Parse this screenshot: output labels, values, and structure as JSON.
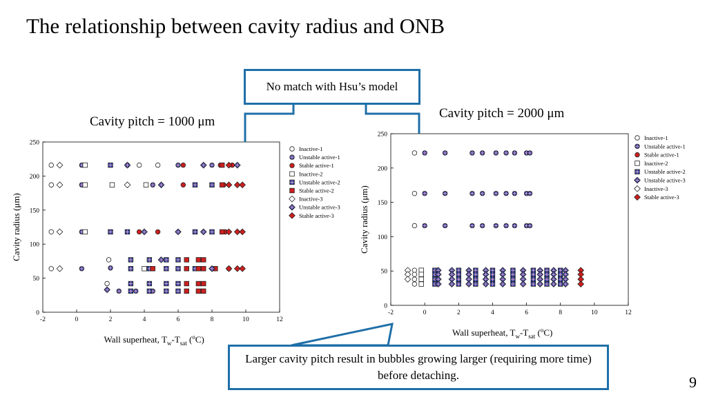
{
  "slide": {
    "title": "The relationship between cavity radius and ONB",
    "page_number": "9",
    "callout_top": "No match with Hsu’s model",
    "callout_bottom": "Larger cavity pitch result in bubbles growing larger (requiring more time) before detaching.",
    "pitch_left": "Cavity pitch = 1000 μm",
    "pitch_right": "Cavity pitch = 2000 μm",
    "accent_color": "#1f6fa8"
  },
  "chart_data": [
    {
      "type": "scatter",
      "title": "",
      "xlabel": "Wall superheat, T",
      "xlabel_sub1": "w",
      "xlabel_mid": "-T",
      "xlabel_sub2": "sat",
      "xlabel_unit_open": " (",
      "xlabel_unit_sup": "o",
      "xlabel_unit_close": "C)",
      "ylabel": "Cavity radius (μm)",
      "xlim": [
        -2,
        12
      ],
      "ylim": [
        0,
        250
      ],
      "xticks": [
        -2,
        0,
        2,
        4,
        6,
        8,
        10,
        12
      ],
      "yticks": [
        0,
        50,
        100,
        150,
        200,
        250
      ],
      "legend_position": "right",
      "series": [
        {
          "name": "Inactive-1",
          "marker": "circle",
          "fill": "#ffffff",
          "points": [
            [
              -1.5,
              216
            ],
            [
              -1.5,
              187
            ],
            [
              -1.5,
              118
            ],
            [
              -1.5,
              64
            ],
            [
              1.8,
              42
            ],
            [
              1.9,
              77
            ],
            [
              3.7,
              216
            ],
            [
              4.8,
              216
            ]
          ]
        },
        {
          "name": "Unstable active-1",
          "marker": "circle-cross",
          "fill": "#2a3fa0",
          "points": [
            [
              0.3,
              216
            ],
            [
              0.3,
              187
            ],
            [
              0.3,
              118
            ],
            [
              0.3,
              64
            ],
            [
              2.0,
              65
            ],
            [
              3.0,
              216
            ],
            [
              4.5,
              187
            ],
            [
              6.0,
              216
            ],
            [
              8.0,
              216
            ],
            [
              2.5,
              31
            ],
            [
              3.5,
              31
            ],
            [
              4.5,
              31
            ]
          ]
        },
        {
          "name": "Stable active-1",
          "marker": "circle",
          "fill": "#cc1f1f",
          "points": [
            [
              3.7,
              118
            ],
            [
              4.8,
              118
            ],
            [
              6.3,
              187
            ],
            [
              6.3,
              216
            ],
            [
              8.5,
              216
            ],
            [
              8.7,
              187
            ],
            [
              8.8,
              118
            ],
            [
              9.0,
              64
            ],
            [
              9.2,
              216
            ]
          ]
        },
        {
          "name": "Inactive-2",
          "marker": "square",
          "fill": "#ffffff",
          "points": [
            [
              0.5,
              216
            ],
            [
              0.5,
              187
            ],
            [
              0.5,
              118
            ],
            [
              2.1,
              187
            ],
            [
              4.1,
              187
            ],
            [
              4.0,
              64
            ]
          ]
        },
        {
          "name": "Unstable active-2",
          "marker": "square-cross",
          "fill": "#2a3fa0",
          "points": [
            [
              2.0,
              216
            ],
            [
              2.0,
              118
            ],
            [
              3.0,
              118
            ],
            [
              3.2,
              77
            ],
            [
              3.2,
              64
            ],
            [
              3.2,
              42
            ],
            [
              3.2,
              31
            ],
            [
              4.3,
              77
            ],
            [
              4.3,
              64
            ],
            [
              4.3,
              42
            ],
            [
              4.3,
              31
            ],
            [
              5.3,
              77
            ],
            [
              5.3,
              64
            ],
            [
              5.3,
              42
            ],
            [
              5.3,
              31
            ],
            [
              6.0,
              77
            ],
            [
              6.0,
              64
            ],
            [
              6.0,
              42
            ],
            [
              6.0,
              31
            ],
            [
              7.0,
              187
            ],
            [
              7.0,
              118
            ],
            [
              7.0,
              64
            ],
            [
              8.0,
              187
            ],
            [
              8.0,
              118
            ]
          ]
        },
        {
          "name": "Stable active-2",
          "marker": "square",
          "fill": "#cc1f1f",
          "points": [
            [
              4.5,
              64
            ],
            [
              6.5,
              77
            ],
            [
              6.5,
              64
            ],
            [
              6.5,
              42
            ],
            [
              6.5,
              31
            ],
            [
              7.2,
              77
            ],
            [
              7.2,
              64
            ],
            [
              7.2,
              42
            ],
            [
              7.2,
              31
            ],
            [
              7.5,
              77
            ],
            [
              7.5,
              64
            ],
            [
              7.5,
              42
            ],
            [
              7.5,
              31
            ],
            [
              8.6,
              216
            ],
            [
              8.6,
              187
            ],
            [
              8.6,
              118
            ],
            [
              8.2,
              64
            ]
          ]
        },
        {
          "name": "Inactive-3",
          "marker": "diamond",
          "fill": "#ffffff",
          "points": [
            [
              -1.0,
              216
            ],
            [
              -1.0,
              187
            ],
            [
              -1.0,
              118
            ],
            [
              -1.0,
              64
            ],
            [
              3.0,
              187
            ]
          ]
        },
        {
          "name": "Unstable active-3",
          "marker": "diamond-cross",
          "fill": "#2a3fa0",
          "points": [
            [
              1.8,
              33
            ],
            [
              3.0,
              216
            ],
            [
              4.0,
              118
            ],
            [
              5.0,
              187
            ],
            [
              5.0,
              77
            ],
            [
              6.0,
              118
            ],
            [
              7.5,
              216
            ],
            [
              7.5,
              118
            ],
            [
              8.0,
              64
            ],
            [
              9.5,
              216
            ]
          ]
        },
        {
          "name": "Stable active-3",
          "marker": "diamond",
          "fill": "#cc1f1f",
          "points": [
            [
              9.0,
              216
            ],
            [
              9.0,
              187
            ],
            [
              9.0,
              118
            ],
            [
              9.0,
              64
            ],
            [
              9.5,
              187
            ],
            [
              9.5,
              118
            ],
            [
              9.5,
              64
            ],
            [
              9.8,
              187
            ],
            [
              9.8,
              118
            ],
            [
              9.8,
              64
            ]
          ]
        }
      ]
    },
    {
      "type": "scatter",
      "title": "",
      "xlabel": "Wall superheat, T",
      "xlabel_sub1": "w",
      "xlabel_mid": "-T",
      "xlabel_sub2": "sat",
      "xlabel_unit_open": " (",
      "xlabel_unit_sup": "o",
      "xlabel_unit_close": "C)",
      "ylabel": "Cavity radius (μm)",
      "xlim": [
        -2,
        12
      ],
      "ylim": [
        0,
        250
      ],
      "xticks": [
        -2,
        0,
        2,
        4,
        6,
        8,
        10,
        12
      ],
      "yticks": [
        0,
        50,
        100,
        150,
        200,
        250
      ],
      "legend_position": "right",
      "series": [
        {
          "name": "Inactive-1",
          "marker": "circle",
          "fill": "#ffffff",
          "points": [
            [
              -0.6,
              222
            ],
            [
              -0.6,
              163
            ],
            [
              -0.6,
              116
            ],
            [
              -0.6,
              51
            ],
            [
              -0.6,
              45
            ],
            [
              -0.6,
              38
            ],
            [
              -0.6,
              31
            ]
          ]
        },
        {
          "name": "Unstable active-1",
          "marker": "circle-cross",
          "fill": "#2a3fa0",
          "points": [
            [
              0.0,
              222
            ],
            [
              0.0,
              163
            ],
            [
              0.0,
              116
            ],
            [
              1.2,
              222
            ],
            [
              1.2,
              163
            ],
            [
              1.2,
              116
            ],
            [
              2.8,
              222
            ],
            [
              2.8,
              163
            ],
            [
              2.8,
              116
            ],
            [
              3.4,
              222
            ],
            [
              3.4,
              163
            ],
            [
              3.4,
              116
            ],
            [
              4.2,
              222
            ],
            [
              4.2,
              163
            ],
            [
              4.2,
              116
            ],
            [
              4.8,
              222
            ],
            [
              4.8,
              163
            ],
            [
              4.8,
              116
            ],
            [
              5.3,
              222
            ],
            [
              5.3,
              163
            ],
            [
              5.3,
              116
            ],
            [
              6.0,
              222
            ],
            [
              6.0,
              163
            ],
            [
              6.0,
              116
            ],
            [
              6.2,
              222
            ],
            [
              6.2,
              163
            ],
            [
              6.2,
              116
            ]
          ]
        },
        {
          "name": "Stable active-1",
          "marker": "circle",
          "fill": "#cc1f1f",
          "points": []
        },
        {
          "name": "Inactive-2",
          "marker": "square",
          "fill": "#ffffff",
          "points": [
            [
              -0.2,
              51
            ],
            [
              -0.2,
              45
            ],
            [
              -0.2,
              38
            ],
            [
              -0.2,
              31
            ]
          ]
        },
        {
          "name": "Unstable active-2",
          "marker": "square-cross",
          "fill": "#2a3fa0",
          "points": [
            [
              0.6,
              51
            ],
            [
              0.6,
              45
            ],
            [
              0.6,
              38
            ],
            [
              0.6,
              31
            ],
            [
              2.0,
              51
            ],
            [
              2.0,
              45
            ],
            [
              2.0,
              38
            ],
            [
              2.0,
              31
            ],
            [
              3.0,
              51
            ],
            [
              3.0,
              45
            ],
            [
              3.0,
              38
            ],
            [
              3.0,
              31
            ],
            [
              4.0,
              51
            ],
            [
              4.0,
              45
            ],
            [
              4.0,
              38
            ],
            [
              4.0,
              31
            ],
            [
              5.2,
              51
            ],
            [
              5.2,
              45
            ],
            [
              5.2,
              38
            ],
            [
              5.2,
              31
            ],
            [
              6.4,
              51
            ],
            [
              6.4,
              45
            ],
            [
              6.4,
              38
            ],
            [
              6.4,
              31
            ],
            [
              7.2,
              51
            ],
            [
              7.2,
              45
            ],
            [
              7.2,
              38
            ],
            [
              7.2,
              31
            ],
            [
              8.0,
              51
            ],
            [
              8.0,
              45
            ],
            [
              8.0,
              38
            ],
            [
              8.0,
              31
            ]
          ]
        },
        {
          "name": "Unstable active-3",
          "marker": "diamond-cross",
          "fill": "#2a3fa0",
          "points": [
            [
              0.8,
              51
            ],
            [
              0.8,
              45
            ],
            [
              0.8,
              38
            ],
            [
              0.8,
              31
            ],
            [
              1.6,
              51
            ],
            [
              1.6,
              45
            ],
            [
              1.6,
              38
            ],
            [
              1.6,
              31
            ],
            [
              2.6,
              51
            ],
            [
              2.6,
              45
            ],
            [
              2.6,
              38
            ],
            [
              2.6,
              31
            ],
            [
              3.6,
              51
            ],
            [
              3.6,
              45
            ],
            [
              3.6,
              38
            ],
            [
              3.6,
              31
            ],
            [
              4.6,
              51
            ],
            [
              4.6,
              45
            ],
            [
              4.6,
              38
            ],
            [
              4.6,
              31
            ],
            [
              5.8,
              51
            ],
            [
              5.8,
              45
            ],
            [
              5.8,
              38
            ],
            [
              5.8,
              31
            ],
            [
              6.8,
              51
            ],
            [
              6.8,
              45
            ],
            [
              6.8,
              38
            ],
            [
              6.8,
              31
            ],
            [
              7.6,
              51
            ],
            [
              7.6,
              45
            ],
            [
              7.6,
              38
            ],
            [
              7.6,
              31
            ],
            [
              8.3,
              51
            ],
            [
              8.3,
              45
            ],
            [
              8.3,
              38
            ],
            [
              8.3,
              31
            ]
          ]
        },
        {
          "name": "Inactive-3",
          "marker": "diamond",
          "fill": "#ffffff",
          "points": [
            [
              -1.0,
              51
            ],
            [
              -1.0,
              45
            ],
            [
              -1.0,
              38
            ]
          ]
        },
        {
          "name": "Stable active-3",
          "marker": "diamond",
          "fill": "#cc1f1f",
          "points": [
            [
              9.2,
              51
            ],
            [
              9.2,
              45
            ],
            [
              9.2,
              38
            ],
            [
              9.2,
              31
            ]
          ]
        }
      ]
    }
  ]
}
